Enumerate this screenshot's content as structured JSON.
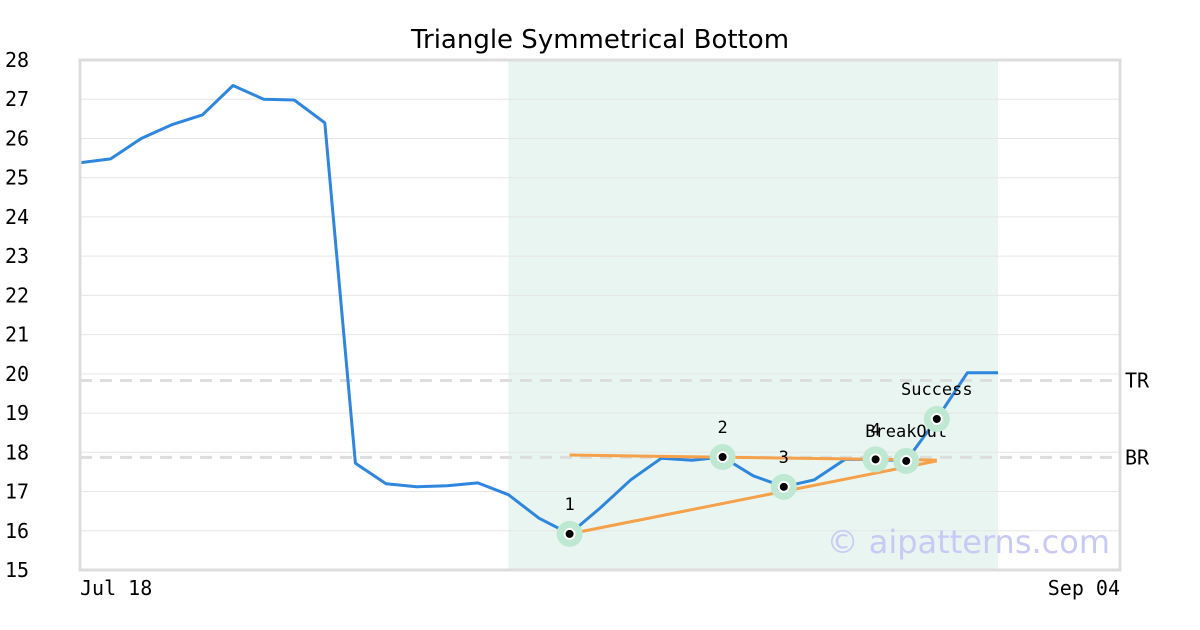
{
  "chart_data": {
    "type": "line",
    "title": "Triangle Symmetrical Bottom",
    "xlabel": "",
    "ylabel": "",
    "ylim": [
      15,
      28
    ],
    "yticks": [
      15,
      16,
      17,
      18,
      19,
      20,
      21,
      22,
      23,
      24,
      25,
      26,
      27,
      28
    ],
    "x_tick_labels": [
      "Jul 18",
      "Sep 04"
    ],
    "grid": "horizontal",
    "series": [
      {
        "color": "#2e86de",
        "values": [
          25.38,
          25.48,
          26.0,
          26.35,
          26.6,
          27.35,
          27.0,
          26.98,
          26.4,
          17.72,
          17.2,
          17.12,
          17.15,
          17.22,
          16.92,
          16.32,
          15.92,
          16.58,
          17.3,
          17.85,
          17.8,
          17.88,
          17.4,
          17.12,
          17.3,
          17.82,
          17.82,
          17.78,
          18.85,
          20.03,
          20.03
        ]
      }
    ],
    "pattern_region": {
      "start_index": 14,
      "end_index": 30,
      "color": "#e9f5f0"
    },
    "levels": [
      {
        "label": "TR",
        "value": 19.83
      },
      {
        "label": "BR",
        "value": 17.87
      }
    ],
    "trendlines": [
      {
        "color": "#f5a04a",
        "from": {
          "index": 16,
          "value": 17.93
        },
        "to": {
          "index": 28,
          "value": 17.8
        }
      },
      {
        "color": "#f5a04a",
        "from": {
          "index": 16,
          "value": 15.92
        },
        "to": {
          "index": 28,
          "value": 17.78
        }
      }
    ],
    "pivot_points": [
      {
        "label": "1",
        "index": 16,
        "value": 15.92
      },
      {
        "label": "2",
        "index": 21,
        "value": 17.88
      },
      {
        "label": "3",
        "index": 23,
        "value": 17.12
      },
      {
        "label": "4",
        "index": 26,
        "value": 17.82
      },
      {
        "label": "BreakOut",
        "index": 27,
        "value": 17.78
      },
      {
        "label": "Success",
        "index": 28,
        "value": 18.85
      }
    ],
    "watermark": "© aipatterns.com"
  }
}
